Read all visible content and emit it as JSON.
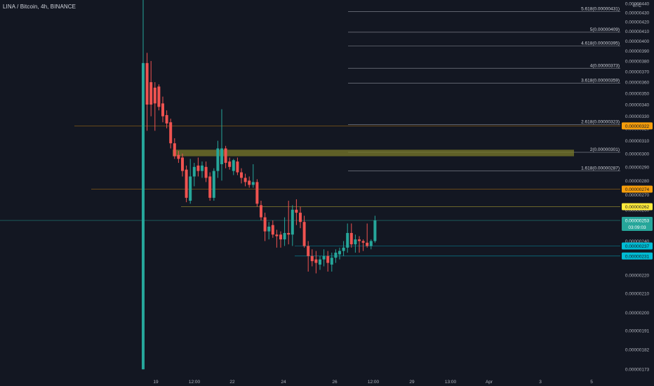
{
  "header": {
    "title": "LINA / Bitcoin, 4h, BINANCE"
  },
  "price_axis": {
    "currency": "BTC",
    "ticks": [
      "0.00000440",
      "0.00000430",
      "0.00000420",
      "0.00000410",
      "0.00000400",
      "0.00000390",
      "0.00000380",
      "0.00000370",
      "0.00000360",
      "0.00000350",
      "0.00000340",
      "0.00000330",
      "0.00000320",
      "0.00000310",
      "0.00000300",
      "0.00000290",
      "0.00000280",
      "0.00000270",
      "0.00000260",
      "0.00000250",
      "0.00000240",
      "0.00000230",
      "0.00000220",
      "0.00000210",
      "0.00000200",
      "0.00000191",
      "0.00000182",
      "0.00000173"
    ],
    "badges": [
      {
        "value": 3.22e-06,
        "label": "0.00000322",
        "color": "#f59d0b",
        "text_color": "#131722"
      },
      {
        "value": 2.74e-06,
        "label": "0.00000274",
        "color": "#f59d0b",
        "text_color": "#131722"
      },
      {
        "value": 2.62e-06,
        "label": "0.00000262",
        "color": "#ffeb3b",
        "text_color": "#131722"
      },
      {
        "value": 2.53e-06,
        "label": "0.00000253",
        "sublabel": "03:09:03",
        "color": "#26a69a",
        "text_color": "#ffffff"
      },
      {
        "value": 2.37e-06,
        "label": "0.00000237",
        "color": "#00bcd4",
        "text_color": "#131722"
      },
      {
        "value": 2.31e-06,
        "label": "0.00000231",
        "color": "#00bcd4",
        "text_color": "#131722"
      }
    ]
  },
  "time_axis": {
    "labels": [
      "19",
      "12:00",
      "22",
      "24",
      "26",
      "12:00",
      "29",
      "13:00",
      "Apr",
      "3",
      "5"
    ]
  },
  "fib_levels": [
    {
      "label": "5.618(0.00000431)",
      "value": 4.31e-06
    },
    {
      "label": "5(0.00000409)",
      "value": 4.09e-06
    },
    {
      "label": "4.618(0.00000395)",
      "value": 3.95e-06
    },
    {
      "label": "4(0.00000373)",
      "value": 3.73e-06
    },
    {
      "label": "3.618(0.00000359)",
      "value": 3.59e-06
    },
    {
      "label": "2.618(0.00000323)",
      "value": 3.23e-06
    },
    {
      "label": "2(0.00000301)",
      "value": 3.01e-06
    },
    {
      "label": "1.618(0.00000287)",
      "value": 2.87e-06
    }
  ],
  "colors": {
    "up": "#26a69a",
    "down": "#ef5350",
    "bg": "#131722",
    "grid_text": "#b2b5be",
    "fib_line": "#787b86",
    "zone": "#7a7a2a"
  },
  "chart_data": {
    "type": "candlestick",
    "title": "LINA / Bitcoin, 4h, BINANCE",
    "ylim": [
      1.7e-06,
      4.44e-06
    ],
    "xlabel": "",
    "ylabel": "",
    "y_scale": "log",
    "support_zone": [
      2.98e-06,
      3.03e-06
    ],
    "horizontal_levels": [
      3.22e-06,
      2.74e-06,
      2.62e-06,
      2.53e-06,
      2.37e-06,
      2.31e-06
    ],
    "candles": [
      {
        "o": 1.73e-06,
        "h": 5.7e-06,
        "l": 1.73e-06,
        "c": 3.78e-06
      },
      {
        "o": 3.78e-06,
        "h": 3.88e-06,
        "l": 3.18e-06,
        "c": 3.4e-06
      },
      {
        "o": 3.6e-06,
        "h": 3.8e-06,
        "l": 3.3e-06,
        "c": 3.4e-06
      },
      {
        "o": 3.55e-06,
        "h": 3.6e-06,
        "l": 3.18e-06,
        "c": 3.41e-06
      },
      {
        "o": 3.56e-06,
        "h": 3.58e-06,
        "l": 3.35e-06,
        "c": 3.38e-06
      },
      {
        "o": 3.41e-06,
        "h": 3.47e-06,
        "l": 3.25e-06,
        "c": 3.3e-06
      },
      {
        "o": 3.31e-06,
        "h": 3.35e-06,
        "l": 3.2e-06,
        "c": 3.24e-06
      },
      {
        "o": 3.25e-06,
        "h": 3.28e-06,
        "l": 3.04e-06,
        "c": 3.08e-06
      },
      {
        "o": 3.08e-06,
        "h": 3.12e-06,
        "l": 2.96e-06,
        "c": 2.98e-06
      },
      {
        "o": 2.99e-06,
        "h": 3.02e-06,
        "l": 2.93e-06,
        "c": 2.96e-06
      },
      {
        "o": 2.97e-06,
        "h": 3e-06,
        "l": 2.83e-06,
        "c": 2.87e-06
      },
      {
        "o": 2.88e-06,
        "h": 2.91e-06,
        "l": 2.65e-06,
        "c": 2.68e-06
      },
      {
        "o": 2.66e-06,
        "h": 2.96e-06,
        "l": 2.64e-06,
        "c": 2.83e-06
      },
      {
        "o": 2.83e-06,
        "h": 2.93e-06,
        "l": 2.76e-06,
        "c": 2.9e-06
      },
      {
        "o": 2.91e-06,
        "h": 2.97e-06,
        "l": 2.83e-06,
        "c": 2.87e-06
      },
      {
        "o": 2.87e-06,
        "h": 2.94e-06,
        "l": 2.82e-06,
        "c": 2.91e-06
      },
      {
        "o": 2.9e-06,
        "h": 2.94e-06,
        "l": 2.79e-06,
        "c": 2.82e-06
      },
      {
        "o": 2.83e-06,
        "h": 2.86e-06,
        "l": 2.66e-06,
        "c": 2.68e-06
      },
      {
        "o": 2.68e-06,
        "h": 2.89e-06,
        "l": 2.66e-06,
        "c": 2.87e-06
      },
      {
        "o": 2.87e-06,
        "h": 3.1e-06,
        "l": 2.82e-06,
        "c": 3.04e-06
      },
      {
        "o": 2.92e-06,
        "h": 3.36e-06,
        "l": 2.8e-06,
        "c": 3.04e-06
      },
      {
        "o": 3.04e-06,
        "h": 3.06e-06,
        "l": 2.89e-06,
        "c": 2.93e-06
      },
      {
        "o": 2.94e-06,
        "h": 2.97e-06,
        "l": 2.88e-06,
        "c": 2.9e-06
      },
      {
        "o": 2.87e-06,
        "h": 2.96e-06,
        "l": 2.84e-06,
        "c": 2.95e-06
      },
      {
        "o": 2.94e-06,
        "h": 2.97e-06,
        "l": 2.84e-06,
        "c": 2.86e-06
      },
      {
        "o": 2.86e-06,
        "h": 2.89e-06,
        "l": 2.78e-06,
        "c": 2.82e-06
      },
      {
        "o": 2.82e-06,
        "h": 2.85e-06,
        "l": 2.76e-06,
        "c": 2.79e-06
      },
      {
        "o": 2.8e-06,
        "h": 2.83e-06,
        "l": 2.75e-06,
        "c": 2.77e-06
      },
      {
        "o": 2.77e-06,
        "h": 2.92e-06,
        "l": 2.75e-06,
        "c": 2.79e-06
      },
      {
        "o": 2.79e-06,
        "h": 2.81e-06,
        "l": 2.62e-06,
        "c": 2.64e-06
      },
      {
        "o": 2.63e-06,
        "h": 2.66e-06,
        "l": 2.53e-06,
        "c": 2.55e-06
      },
      {
        "o": 2.55e-06,
        "h": 2.58e-06,
        "l": 2.4e-06,
        "c": 2.46e-06
      },
      {
        "o": 2.46e-06,
        "h": 2.52e-06,
        "l": 2.41e-06,
        "c": 2.49e-06
      },
      {
        "o": 2.5e-06,
        "h": 2.53e-06,
        "l": 2.42e-06,
        "c": 2.44e-06
      },
      {
        "o": 2.44e-06,
        "h": 2.47e-06,
        "l": 2.36e-06,
        "c": 2.43e-06
      },
      {
        "o": 2.44e-06,
        "h": 2.46e-06,
        "l": 2.36e-06,
        "c": 2.41e-06
      },
      {
        "o": 2.41e-06,
        "h": 2.55e-06,
        "l": 2.37e-06,
        "c": 2.45e-06
      },
      {
        "o": 2.45e-06,
        "h": 2.66e-06,
        "l": 2.38e-06,
        "c": 2.44e-06
      },
      {
        "o": 2.44e-06,
        "h": 2.63e-06,
        "l": 2.37e-06,
        "c": 2.6e-06
      },
      {
        "o": 2.6e-06,
        "h": 2.67e-06,
        "l": 2.5e-06,
        "c": 2.58e-06
      },
      {
        "o": 2.58e-06,
        "h": 2.62e-06,
        "l": 2.48e-06,
        "c": 2.52e-06
      },
      {
        "o": 2.52e-06,
        "h": 2.56e-06,
        "l": 2.36e-06,
        "c": 2.37e-06
      },
      {
        "o": 2.37e-06,
        "h": 2.4e-06,
        "l": 2.22e-06,
        "c": 2.31e-06
      },
      {
        "o": 2.31e-06,
        "h": 2.35e-06,
        "l": 2.25e-06,
        "c": 2.28e-06
      },
      {
        "o": 2.29e-06,
        "h": 2.34e-06,
        "l": 2.21e-06,
        "c": 2.27e-06
      },
      {
        "o": 2.26e-06,
        "h": 2.31e-06,
        "l": 2.23e-06,
        "c": 2.29e-06
      },
      {
        "o": 2.29e-06,
        "h": 2.35e-06,
        "l": 2.25e-06,
        "c": 2.31e-06
      },
      {
        "o": 2.31e-06,
        "h": 2.34e-06,
        "l": 2.22e-06,
        "c": 2.27e-06
      },
      {
        "o": 2.26e-06,
        "h": 2.33e-06,
        "l": 2.22e-06,
        "c": 2.3e-06
      },
      {
        "o": 2.3e-06,
        "h": 2.35e-06,
        "l": 2.27e-06,
        "c": 2.33e-06
      },
      {
        "o": 2.32e-06,
        "h": 2.36e-06,
        "l": 2.29e-06,
        "c": 2.34e-06
      },
      {
        "o": 2.34e-06,
        "h": 2.4e-06,
        "l": 2.31e-06,
        "c": 2.36e-06
      },
      {
        "o": 2.36e-06,
        "h": 2.51e-06,
        "l": 2.33e-06,
        "c": 2.45e-06
      },
      {
        "o": 2.45e-06,
        "h": 2.51e-06,
        "l": 2.36e-06,
        "c": 2.38e-06
      },
      {
        "o": 2.38e-06,
        "h": 2.44e-06,
        "l": 2.33e-06,
        "c": 2.41e-06
      },
      {
        "o": 2.41e-06,
        "h": 2.43e-06,
        "l": 2.33e-06,
        "c": 2.4e-06
      },
      {
        "o": 2.4e-06,
        "h": 2.41e-06,
        "l": 2.34e-06,
        "c": 2.39e-06
      },
      {
        "o": 2.39e-06,
        "h": 2.51e-06,
        "l": 2.36e-06,
        "c": 2.37e-06
      },
      {
        "o": 2.37e-06,
        "h": 2.41e-06,
        "l": 2.35e-06,
        "c": 2.4e-06
      },
      {
        "o": 2.4e-06,
        "h": 2.56e-06,
        "l": 2.39e-06,
        "c": 2.53e-06
      }
    ]
  }
}
